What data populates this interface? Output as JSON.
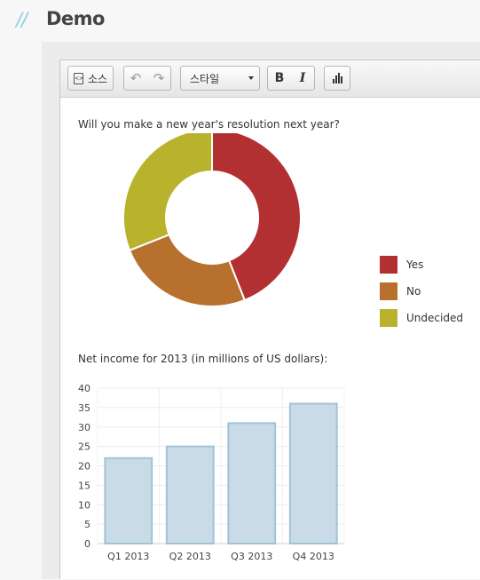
{
  "header": {
    "slashes": "//",
    "title": "Demo"
  },
  "toolbar": {
    "source_label": "소스",
    "style_label": "스타일",
    "bold_label": "B",
    "italic_label": "I"
  },
  "content": {
    "question": "Will you make a new year's resolution next year?",
    "income_title": "Net income for 2013 (in millions of US dollars):"
  },
  "chart_data": [
    {
      "type": "pie",
      "title": "Will you make a new year's resolution next year?",
      "labels": [
        "Yes",
        "No",
        "Undecided"
      ],
      "values": [
        44,
        25,
        31
      ],
      "colors": [
        "#b33032",
        "#b8702f",
        "#b8b22d"
      ],
      "legend_position": "right"
    },
    {
      "type": "bar",
      "title": "Net income for 2013 (in millions of US dollars):",
      "categories": [
        "Q1 2013",
        "Q2 2013",
        "Q3 2013",
        "Q4 2013"
      ],
      "values": [
        22,
        25,
        31,
        36
      ],
      "ylim": [
        0,
        40
      ],
      "yticks": [
        0,
        5,
        10,
        15,
        20,
        25,
        30,
        35,
        40
      ],
      "grid": true,
      "bar_fill": "#c9dbe6",
      "bar_stroke": "#9fc3d6"
    }
  ]
}
